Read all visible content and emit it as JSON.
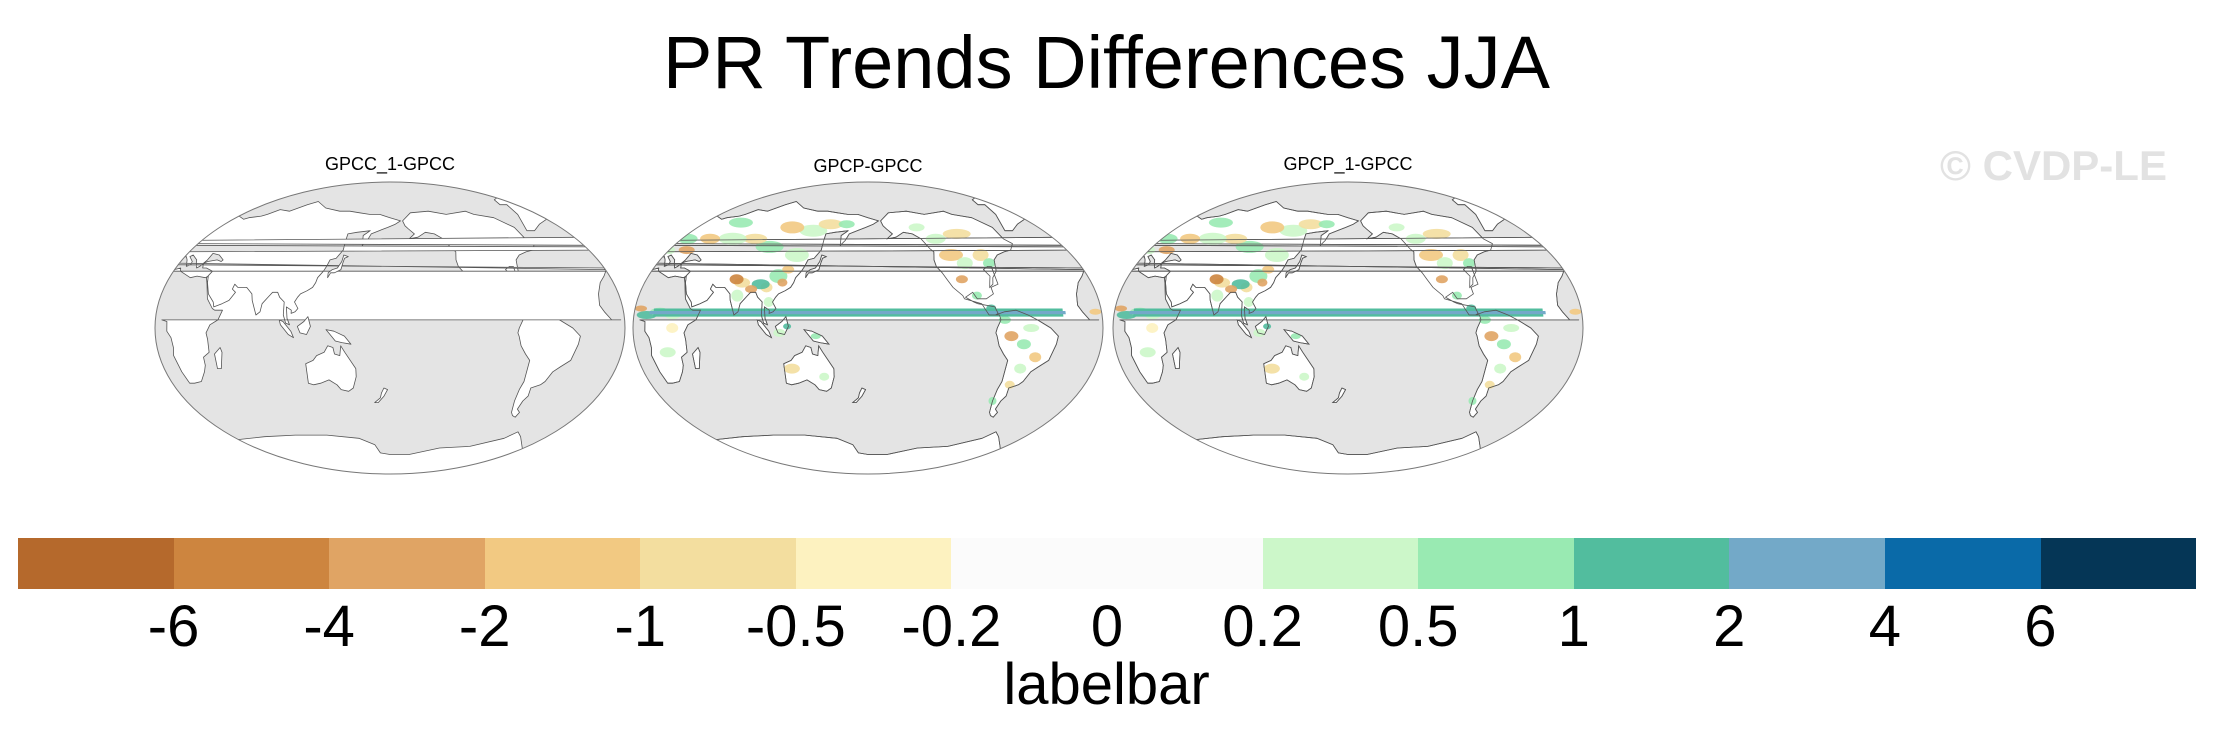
{
  "title": "PR Trends Differences JJA",
  "watermark": "© CVDP-LE",
  "panels": [
    {
      "title": "GPCC_1-GPCC",
      "shading": "none"
    },
    {
      "title": "GPCP-GPCC",
      "shading": "colored"
    },
    {
      "title": "GPCP_1-GPCC",
      "shading": "colored"
    }
  ],
  "labelbar": {
    "title": "labelbar",
    "colors": [
      "#b5692c",
      "#cd853f",
      "#e0a464",
      "#f2c982",
      "#f3de9f",
      "#fdf2c0",
      "#fbfbfb",
      "#fbfbfb",
      "#ccf7c9",
      "#99eab2",
      "#52bd9e",
      "#73a9c8",
      "#0a6aa8",
      "#053656"
    ],
    "ticks": [
      "-6",
      "-4",
      "-2",
      "-1",
      "-0.5",
      "-0.2",
      "0",
      "0.2",
      "0.5",
      "1",
      "2",
      "4",
      "6"
    ]
  },
  "map_colors": {
    "ocean": "#e4e4e4",
    "land": "#ffffff",
    "coast": "#555555"
  }
}
